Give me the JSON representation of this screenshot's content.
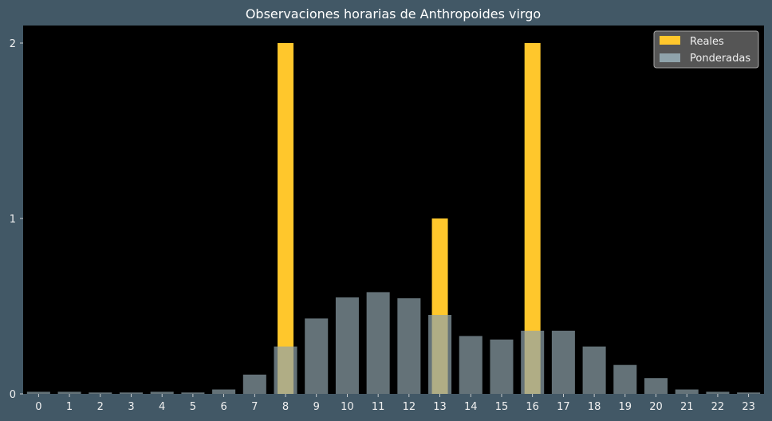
{
  "chart_data": {
    "type": "bar",
    "title": "Observaciones horarias de Anthropoides virgo",
    "xlabel": "",
    "ylabel": "",
    "categories": [
      "0",
      "1",
      "2",
      "3",
      "4",
      "5",
      "6",
      "7",
      "8",
      "9",
      "10",
      "11",
      "12",
      "13",
      "14",
      "15",
      "16",
      "17",
      "18",
      "19",
      "20",
      "21",
      "22",
      "23"
    ],
    "ylim": [
      0,
      2.1
    ],
    "yticks": [
      "0",
      "1",
      "2"
    ],
    "legend_position": "top-right",
    "grid": false,
    "series": [
      {
        "name": "Reales",
        "color": "#ffc72c",
        "values": [
          0,
          0,
          0,
          0,
          0,
          0,
          0,
          0,
          2,
          0,
          0,
          0,
          0,
          1,
          0,
          0,
          2,
          0,
          0,
          0,
          0,
          0,
          0,
          0
        ]
      },
      {
        "name": "Ponderadas",
        "color": "#8fa3ab",
        "values": [
          0.012,
          0.012,
          0.008,
          0.008,
          0.012,
          0.008,
          0.025,
          0.11,
          0.27,
          0.43,
          0.55,
          0.58,
          0.545,
          0.45,
          0.33,
          0.31,
          0.36,
          0.36,
          0.27,
          0.165,
          0.09,
          0.025,
          0.012,
          0.008
        ]
      }
    ]
  }
}
